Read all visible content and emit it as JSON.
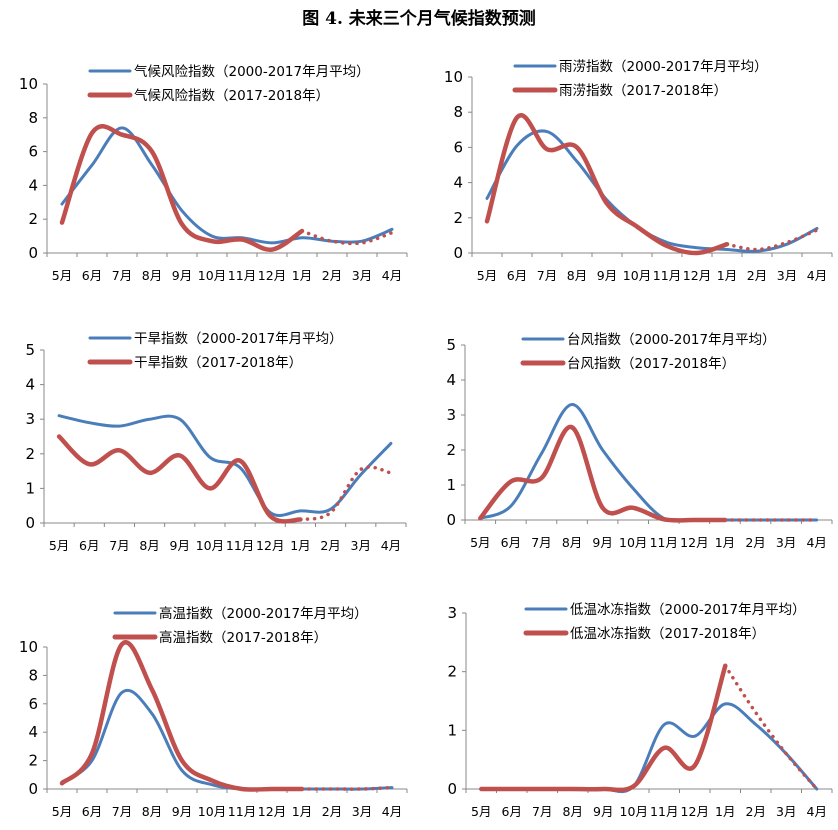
{
  "figure_title": "图 4. 未来三个月气候指数预测",
  "colors": {
    "avg": "#4a7ebb",
    "actual": "#c0504d",
    "axis": "#888888",
    "text": "#000000"
  },
  "chart_data": [
    {
      "type": "line",
      "categories": [
        "5月",
        "6月",
        "7月",
        "8月",
        "9月",
        "10月",
        "11月",
        "12月",
        "1月",
        "2月",
        "3月",
        "4月"
      ],
      "ylim": [
        0,
        10
      ],
      "yticks": [
        0,
        2,
        4,
        6,
        8,
        10
      ],
      "legend_position": "top",
      "series": [
        {
          "name": "气候风险指数（2000-2017年月平均）",
          "style": "avg",
          "values": [
            2.9,
            5.2,
            7.4,
            5.2,
            2.5,
            1.0,
            0.9,
            0.6,
            0.9,
            0.7,
            0.7,
            1.4
          ]
        },
        {
          "name": "气候风险指数（2017-2018年）",
          "style": "actual",
          "values": [
            1.8,
            7.1,
            7.0,
            6.0,
            1.7,
            0.7,
            0.8,
            0.2,
            1.3,
            null,
            null,
            null
          ]
        },
        {
          "name": "",
          "style": "forecast",
          "values": [
            null,
            null,
            null,
            null,
            null,
            null,
            null,
            null,
            1.3,
            0.7,
            0.6,
            1.2
          ]
        }
      ]
    },
    {
      "type": "line",
      "categories": [
        "5月",
        "6月",
        "7月",
        "8月",
        "9月",
        "10月",
        "11月",
        "12月",
        "1月",
        "2月",
        "3月",
        "4月"
      ],
      "ylim": [
        0,
        10
      ],
      "yticks": [
        0,
        2,
        4,
        6,
        8,
        10
      ],
      "legend_position": "top",
      "series": [
        {
          "name": "雨涝指数（2000-2017年月平均）",
          "style": "avg",
          "values": [
            3.1,
            6.1,
            6.9,
            5.2,
            3.0,
            1.5,
            0.6,
            0.3,
            0.2,
            0.1,
            0.5,
            1.4
          ]
        },
        {
          "name": "雨涝指数（2017-2018年）",
          "style": "actual",
          "values": [
            1.8,
            7.7,
            5.9,
            6.0,
            2.8,
            1.5,
            0.4,
            0.0,
            0.5,
            null,
            null,
            null
          ]
        },
        {
          "name": "",
          "style": "forecast",
          "values": [
            null,
            null,
            null,
            null,
            null,
            null,
            null,
            null,
            0.5,
            0.2,
            0.6,
            1.3
          ]
        }
      ]
    },
    {
      "type": "line",
      "categories": [
        "5月",
        "6月",
        "7月",
        "8月",
        "9月",
        "10月",
        "11月",
        "12月",
        "1月",
        "2月",
        "3月",
        "4月"
      ],
      "ylim": [
        0,
        5
      ],
      "yticks": [
        0,
        1,
        2,
        3,
        4,
        5
      ],
      "legend_position": "top",
      "series": [
        {
          "name": "干旱指数（2000-2017年月平均）",
          "style": "avg",
          "values": [
            3.1,
            2.9,
            2.8,
            3.0,
            3.0,
            1.9,
            1.6,
            0.3,
            0.35,
            0.4,
            1.4,
            2.3
          ]
        },
        {
          "name": "干旱指数（2017-2018年）",
          "style": "actual",
          "values": [
            2.5,
            1.7,
            2.1,
            1.45,
            1.95,
            1.0,
            1.8,
            0.2,
            0.1,
            null,
            null,
            null
          ]
        },
        {
          "name": "",
          "style": "forecast",
          "values": [
            null,
            null,
            null,
            null,
            null,
            null,
            null,
            null,
            0.1,
            0.3,
            1.55,
            1.45
          ]
        }
      ]
    },
    {
      "type": "line",
      "categories": [
        "5月",
        "6月",
        "7月",
        "8月",
        "9月",
        "10月",
        "11月",
        "12月",
        "1月",
        "2月",
        "3月",
        "4月"
      ],
      "ylim": [
        0,
        5
      ],
      "yticks": [
        0,
        1,
        2,
        3,
        4,
        5
      ],
      "legend_position": "top",
      "series": [
        {
          "name": "台风指数（2000-2017年月平均）",
          "style": "avg",
          "values": [
            0.05,
            0.4,
            1.9,
            3.3,
            2.0,
            0.9,
            0.05,
            0.0,
            0.0,
            0.0,
            0.0,
            0.0
          ]
        },
        {
          "name": "台风指数（2017-2018年）",
          "style": "actual",
          "values": [
            0.05,
            1.1,
            1.2,
            2.65,
            0.35,
            0.35,
            0.02,
            0.0,
            0.0,
            null,
            null,
            null
          ]
        },
        {
          "name": "",
          "style": "forecast",
          "values": [
            null,
            null,
            null,
            null,
            null,
            null,
            null,
            null,
            0.0,
            0.0,
            0.0,
            0.0
          ]
        }
      ]
    },
    {
      "type": "line",
      "categories": [
        "5月",
        "6月",
        "7月",
        "8月",
        "9月",
        "10月",
        "11月",
        "12月",
        "1月",
        "2月",
        "3月",
        "4月"
      ],
      "ylim": [
        0,
        10
      ],
      "yticks": [
        0,
        2,
        4,
        6,
        8,
        10
      ],
      "legend_position": "top",
      "series": [
        {
          "name": "高温指数（2000-2017年月平均）",
          "style": "avg",
          "values": [
            0.5,
            2.0,
            6.8,
            5.3,
            1.3,
            0.3,
            0.0,
            0.0,
            0.0,
            0.0,
            0.0,
            0.1
          ]
        },
        {
          "name": "高温指数（2017-2018年）",
          "style": "actual",
          "values": [
            0.4,
            2.5,
            10.2,
            7.0,
            2.0,
            0.6,
            0.0,
            0.0,
            0.0,
            null,
            null,
            null
          ]
        },
        {
          "name": "",
          "style": "forecast",
          "values": [
            null,
            null,
            null,
            null,
            null,
            null,
            null,
            null,
            0.0,
            0.0,
            0.0,
            0.1
          ]
        }
      ]
    },
    {
      "type": "line",
      "categories": [
        "5月",
        "6月",
        "7月",
        "8月",
        "9月",
        "10月",
        "11月",
        "12月",
        "1月",
        "2月",
        "3月",
        "4月"
      ],
      "ylim": [
        0,
        3
      ],
      "yticks": [
        0,
        1,
        2,
        3
      ],
      "legend_position": "top",
      "series": [
        {
          "name": "低温冰冻指数（2000-2017年月平均）",
          "style": "avg",
          "values": [
            0.0,
            0.0,
            0.0,
            0.0,
            0.0,
            0.05,
            1.1,
            0.9,
            1.45,
            1.1,
            0.6,
            0.0
          ]
        },
        {
          "name": "低温冰冻指数（2017-2018年）",
          "style": "actual",
          "values": [
            0.0,
            0.0,
            0.0,
            0.0,
            0.0,
            0.05,
            0.7,
            0.4,
            2.1,
            null,
            null,
            null
          ]
        },
        {
          "name": "",
          "style": "forecast",
          "values": [
            null,
            null,
            null,
            null,
            null,
            null,
            null,
            null,
            2.1,
            1.3,
            0.6,
            0.0
          ]
        }
      ]
    }
  ]
}
